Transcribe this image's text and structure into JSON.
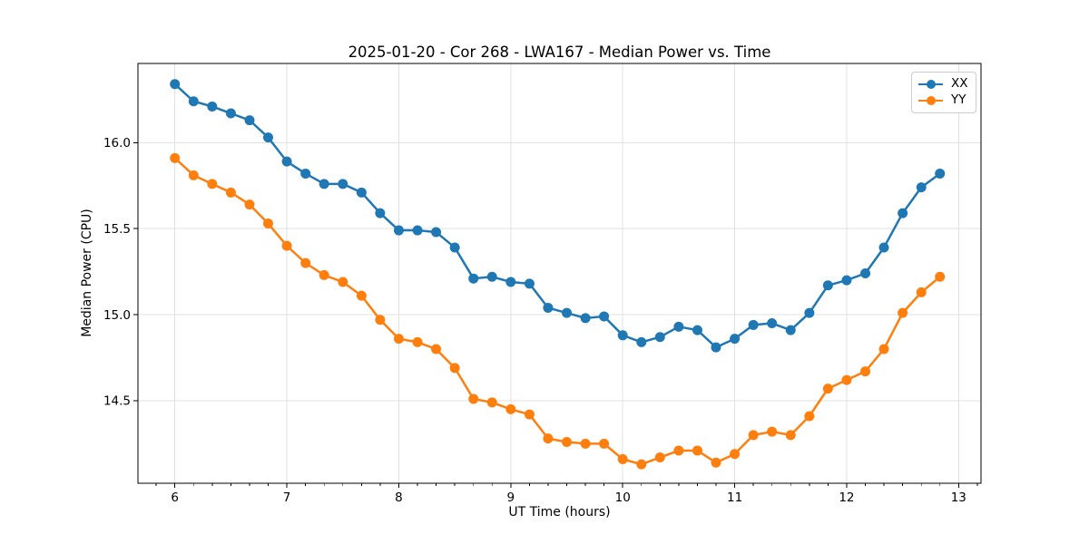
{
  "chart_data": {
    "type": "line",
    "title": "2025-01-20 - Cor 268 - LWA167 - Median Power vs. Time",
    "xlabel": "UT Time (hours)",
    "ylabel": "Median Power (CPU)",
    "xlim": [
      5.67,
      13.2
    ],
    "ylim": [
      14.02,
      16.46
    ],
    "grid": "major",
    "grid_color": "#e0e0e0",
    "spine_color": "#000000",
    "background": "#ffffff",
    "xticks": {
      "values": [
        6,
        7,
        8,
        9,
        10,
        11,
        12,
        13
      ],
      "labels": [
        "6",
        "7",
        "8",
        "9",
        "10",
        "11",
        "12",
        "13"
      ]
    },
    "yticks": {
      "values": [
        14.5,
        15.0,
        15.5,
        16.0
      ],
      "labels": [
        "14.5",
        "15.0",
        "15.5",
        "16.0"
      ]
    },
    "x_minor_tick_step": 0.16667,
    "x": [
      6.0,
      6.167,
      6.333,
      6.5,
      6.667,
      6.833,
      7.0,
      7.167,
      7.333,
      7.5,
      7.667,
      7.833,
      8.0,
      8.167,
      8.333,
      8.5,
      8.667,
      8.833,
      9.0,
      9.167,
      9.333,
      9.5,
      9.667,
      9.833,
      10.0,
      10.167,
      10.333,
      10.5,
      10.667,
      10.833,
      11.0,
      11.167,
      11.333,
      11.5,
      11.667,
      11.833,
      12.0,
      12.167,
      12.333,
      12.5,
      12.667,
      12.833
    ],
    "series": [
      {
        "name": "XX",
        "color": "#1f77b4",
        "marker": "o",
        "values": [
          16.34,
          16.24,
          16.21,
          16.17,
          16.13,
          16.03,
          15.89,
          15.82,
          15.76,
          15.76,
          15.71,
          15.59,
          15.49,
          15.49,
          15.48,
          15.39,
          15.21,
          15.22,
          15.19,
          15.18,
          15.04,
          15.01,
          14.98,
          14.99,
          14.88,
          14.84,
          14.87,
          14.93,
          14.91,
          14.81,
          14.86,
          14.94,
          14.95,
          14.91,
          15.01,
          15.17,
          15.2,
          15.24,
          15.39,
          15.59,
          15.74,
          15.82
        ]
      },
      {
        "name": "YY",
        "color": "#ff7f0e",
        "marker": "o",
        "values": [
          15.91,
          15.81,
          15.76,
          15.71,
          15.64,
          15.53,
          15.4,
          15.3,
          15.23,
          15.19,
          15.11,
          14.97,
          14.86,
          14.84,
          14.8,
          14.69,
          14.51,
          14.49,
          14.45,
          14.42,
          14.28,
          14.26,
          14.25,
          14.25,
          14.16,
          14.13,
          14.17,
          14.21,
          14.21,
          14.14,
          14.19,
          14.3,
          14.32,
          14.3,
          14.41,
          14.57,
          14.62,
          14.67,
          14.8,
          15.01,
          15.13,
          15.22
        ]
      }
    ],
    "legend": {
      "location": "upper right",
      "border_color": "#cccccc",
      "entries": [
        "XX",
        "YY"
      ]
    }
  }
}
